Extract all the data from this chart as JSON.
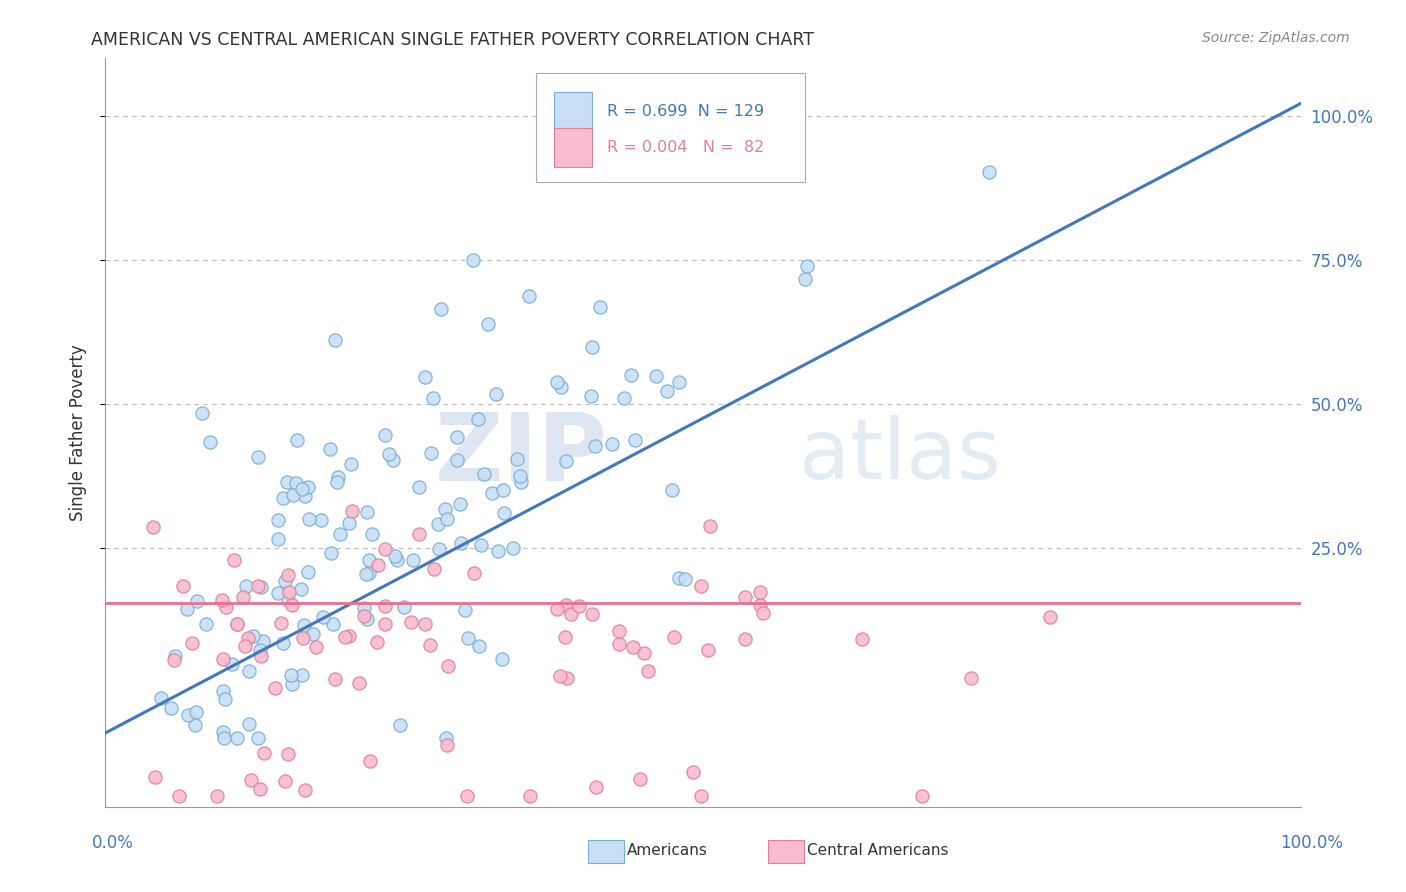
{
  "title": "AMERICAN VS CENTRAL AMERICAN SINGLE FATHER POVERTY CORRELATION CHART",
  "source": "Source: ZipAtlas.com",
  "ylabel": "Single Father Poverty",
  "watermark_zip": "ZIP",
  "watermark_atlas": "atlas",
  "americans_color": "#c8dff5",
  "americans_edge": "#7aadd4",
  "americans_line": "#4477bb",
  "central_color": "#f8bbd0",
  "central_edge": "#e08098",
  "central_line": "#e87090",
  "background": "#ffffff",
  "grid_color": "#bbbbbb",
  "tick_blue": "#4477bb",
  "text_color": "#333333",
  "source_color": "#888888",
  "R_americans": 0.699,
  "N_americans": 129,
  "R_central": 0.004,
  "N_central": 82,
  "seed": 42,
  "yticks": [
    0.25,
    0.5,
    0.75,
    1.0
  ],
  "ytick_labels": [
    "25.0%",
    "50.0%",
    "75.0%",
    "100.0%"
  ],
  "xlim": [
    -0.02,
    1.02
  ],
  "ylim": [
    -0.2,
    1.1
  ]
}
